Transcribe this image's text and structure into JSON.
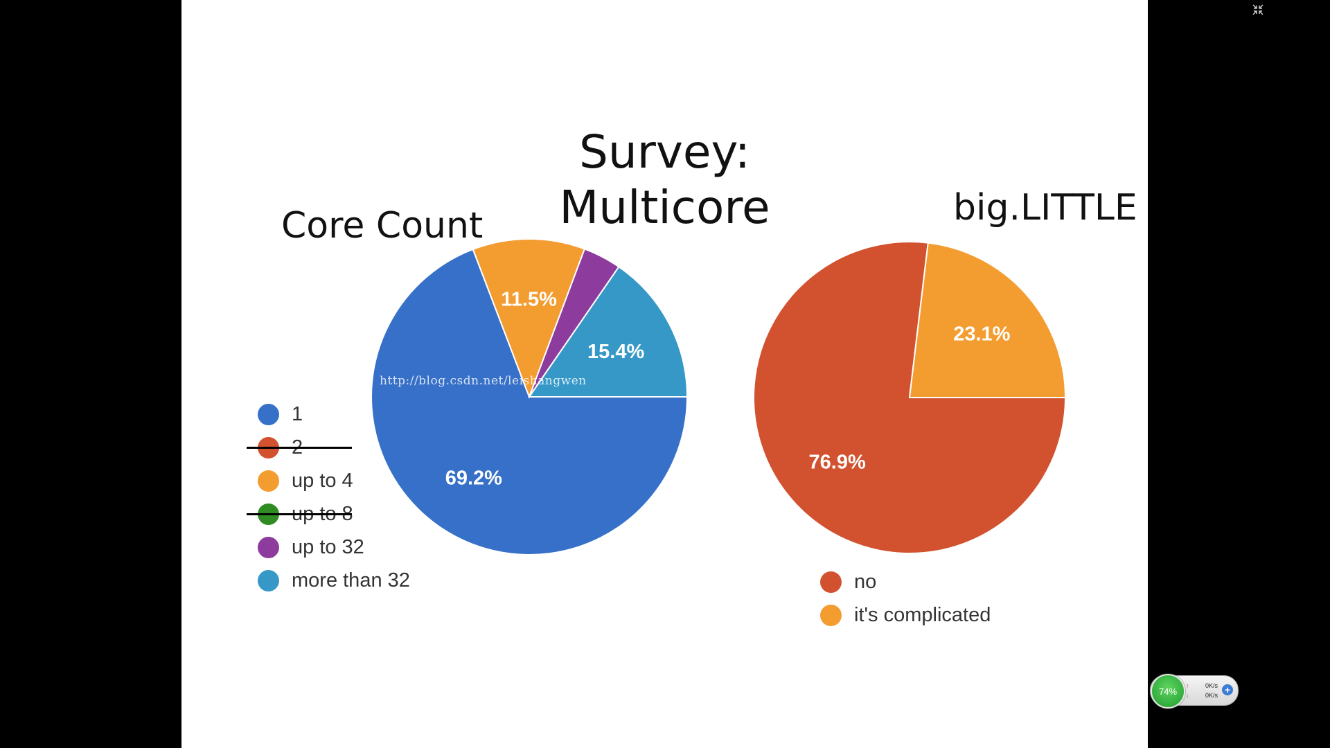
{
  "slide": {
    "title_line1": "Survey:",
    "title_line2": "Multicore"
  },
  "watermark": "http://blog.csdn.net/leishangwen",
  "chart_data": [
    {
      "type": "pie",
      "title": "Core Count",
      "slices": [
        {
          "label": "1",
          "value": 69.2,
          "color": "#3670c8",
          "display": "69.2%"
        },
        {
          "label": "2",
          "value": 0,
          "color": "#d2522f",
          "display": "",
          "struck": true
        },
        {
          "label": "up to 4",
          "value": 11.5,
          "color": "#f39c30",
          "display": "11.5%"
        },
        {
          "label": "up to 8",
          "value": 0,
          "color": "#2e8c22",
          "display": "",
          "struck": true
        },
        {
          "label": "up to 32",
          "value": 3.9,
          "color": "#8e3b9e",
          "display": ""
        },
        {
          "label": "more than 32",
          "value": 15.4,
          "color": "#3598c7",
          "display": "15.4%"
        }
      ],
      "legend": "left-bottom"
    },
    {
      "type": "pie",
      "title": "big.LITTLE",
      "slices": [
        {
          "label": "no",
          "value": 76.9,
          "color": "#d2522f",
          "display": "76.9%"
        },
        {
          "label": "it's complicated",
          "value": 23.1,
          "color": "#f39c30",
          "display": "23.1%"
        }
      ],
      "legend": "bottom"
    }
  ],
  "speed_widget": {
    "percent": "74%",
    "up_rate": "0K/s",
    "down_rate": "0K/s"
  },
  "icons": {
    "fullscreen": "exit-fullscreen-icon",
    "plus": "plus-icon"
  }
}
